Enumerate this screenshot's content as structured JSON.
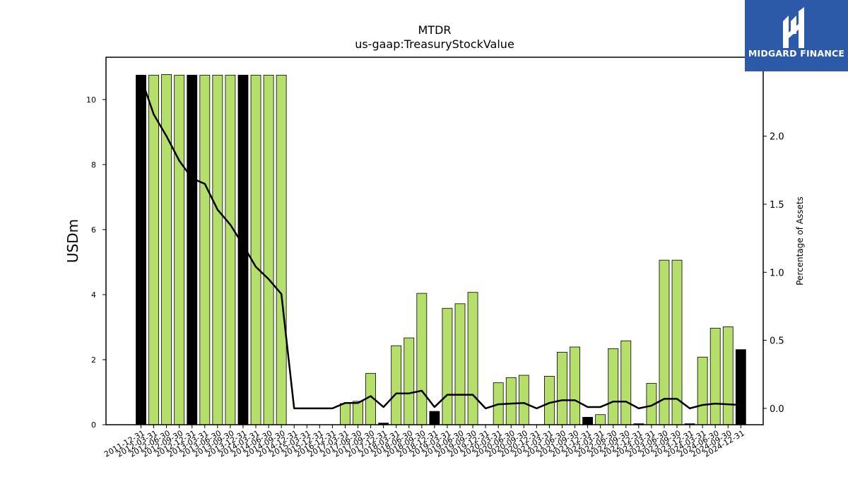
{
  "chart_data": {
    "type": "bar",
    "title": "MTDR",
    "subtitle": "us-gaap:TreasuryStockValue",
    "ylabel": "USDm",
    "y2label": "Percentage of Assets",
    "ylim": [
      0,
      11.3
    ],
    "y2lim": [
      -0.12,
      2.58
    ],
    "yticks": [
      0,
      2,
      4,
      6,
      8,
      10
    ],
    "y2ticks": [
      0.0,
      0.5,
      1.0,
      1.5,
      2.0
    ],
    "y2tick_labels": [
      "0.0",
      "0.5",
      "1.0",
      "1.5",
      "2.0"
    ],
    "grid": false,
    "categories": [
      "2011-12-31",
      "2012-03-31",
      "2012-06-30",
      "2012-09-30",
      "2012-12-31",
      "2013-03-31",
      "2013-06-30",
      "2013-09-30",
      "2013-12-31",
      "2014-03-31",
      "2014-06-30",
      "2014-09-30",
      "2014-12-31",
      "2015-03-31",
      "2015-12-31",
      "2016-12-31",
      "2017-03-31",
      "2017-06-30",
      "2017-09-30",
      "2017-12-31",
      "2018-03-31",
      "2018-06-30",
      "2018-09-30",
      "2018-12-31",
      "2019-03-31",
      "2019-06-30",
      "2019-09-30",
      "2019-12-31",
      "2020-03-31",
      "2020-06-30",
      "2020-09-30",
      "2020-12-31",
      "2021-03-31",
      "2021-06-30",
      "2021-09-30",
      "2021-12-31",
      "2022-03-31",
      "2022-06-30",
      "2022-09-30",
      "2022-12-31",
      "2023-03-31",
      "2023-06-30",
      "2023-09-30",
      "2023-12-31",
      "2024-03-31",
      "2024-06-30",
      "2024-09-30",
      "2024-12-31"
    ],
    "values": [
      10.75,
      10.75,
      10.77,
      10.75,
      10.75,
      10.75,
      10.75,
      10.75,
      10.75,
      10.75,
      10.75,
      10.75,
      0,
      0,
      0,
      0,
      0.65,
      0.72,
      1.58,
      0.05,
      2.43,
      2.67,
      4.04,
      0.41,
      3.58,
      3.72,
      4.07,
      0,
      1.29,
      1.45,
      1.52,
      0,
      1.49,
      2.23,
      2.39,
      0.23,
      0.31,
      2.34,
      2.58,
      0.03,
      1.27,
      5.06,
      5.06,
      0.03,
      2.08,
      2.97,
      3.01,
      2.31
    ],
    "bar_colors": [
      "black",
      "green",
      "green",
      "green",
      "black",
      "green",
      "green",
      "green",
      "black",
      "green",
      "green",
      "green",
      "black",
      "green",
      "green",
      "green",
      "green",
      "green",
      "green",
      "black",
      "green",
      "green",
      "green",
      "black",
      "green",
      "green",
      "green",
      "black",
      "green",
      "green",
      "green",
      "black",
      "green",
      "green",
      "green",
      "black",
      "green",
      "green",
      "green",
      "black",
      "green",
      "green",
      "green",
      "black",
      "green",
      "green",
      "green",
      "black"
    ],
    "secondary_line": {
      "values": [
        2.43,
        2.16,
        2.0,
        1.82,
        1.69,
        1.65,
        1.46,
        1.35,
        1.2,
        1.04,
        0.95,
        0.84,
        0.0,
        0.0,
        0.0,
        0.0,
        0.04,
        0.04,
        0.09,
        0.01,
        0.11,
        0.11,
        0.13,
        0.01,
        0.1,
        0.1,
        0.1,
        0.0,
        0.03,
        0.035,
        0.04,
        0.0,
        0.04,
        0.06,
        0.06,
        0.01,
        0.01,
        0.05,
        0.05,
        0.0,
        0.02,
        0.07,
        0.07,
        0.0,
        0.025,
        0.035,
        0.03,
        0.025
      ],
      "color": "#000000"
    },
    "colors": {
      "green": "#b5de6b",
      "black": "#000000"
    }
  },
  "branding": {
    "name": "MIDGARD FINANCE",
    "color": "#2c5aa8"
  }
}
